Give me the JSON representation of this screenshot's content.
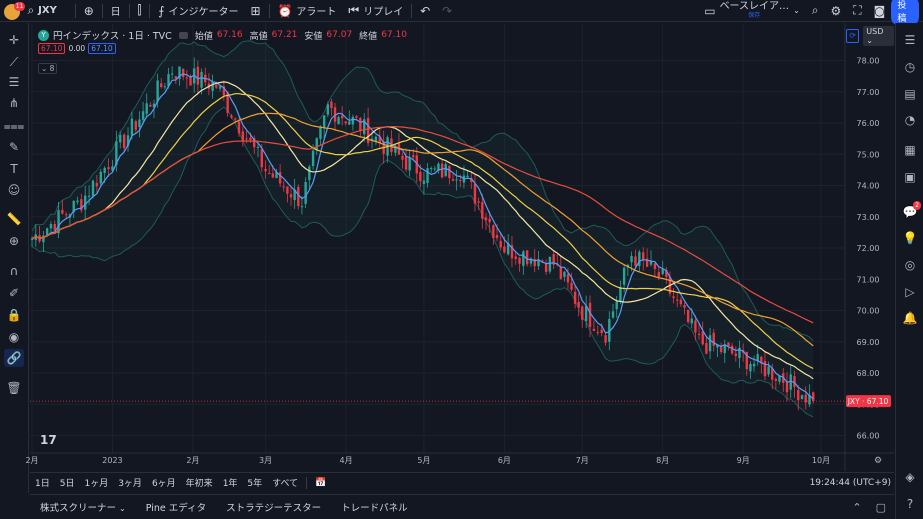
{
  "topbar": {
    "avatar_badge": "11",
    "symbol": "JXY",
    "interval": "日",
    "indicators_label": "インジケーター",
    "alert_label": "アラート",
    "replay_label": "リプレイ",
    "layout_label": "ベースレイア…",
    "layout_sub": "保存",
    "post_label": "投稿"
  },
  "legend": {
    "badge_letter": "Y",
    "title": "円インデックス · 1日 · TVC",
    "open_label": "始値",
    "open": "67.16",
    "high_label": "高値",
    "high": "67.21",
    "low_label": "安値",
    "low": "67.07",
    "close_label": "終値",
    "close": "67.10",
    "sell_price": "67.10",
    "change": "0.00",
    "buy_price": "67.10",
    "indicator_count": "8"
  },
  "currency": "USD",
  "price_tag": "JXY · 67.10",
  "chart_data": {
    "type": "candlestick",
    "y_axis_ticks": [
      "78.00",
      "77.00",
      "76.00",
      "75.00",
      "74.00",
      "73.00",
      "72.00",
      "71.00",
      "70.00",
      "69.00",
      "68.00",
      "67.00",
      "66.00"
    ],
    "x_axis_ticks": [
      "2月",
      "2023",
      "2月",
      "3月",
      "4月",
      "5月",
      "6月",
      "7月",
      "8月",
      "9月",
      "10月"
    ],
    "ylim": [
      65.6,
      78.4
    ],
    "last_price": 67.1,
    "approx_close_path": [
      {
        "date": "2022-12-01",
        "close": 72.3
      },
      {
        "date": "2022-12-20",
        "close": 73.5
      },
      {
        "date": "2023-01-10",
        "close": 76.0
      },
      {
        "date": "2023-01-24",
        "close": 77.7
      },
      {
        "date": "2023-02-10",
        "close": 77.2
      },
      {
        "date": "2023-03-01",
        "close": 74.5
      },
      {
        "date": "2023-03-15",
        "close": 73.5
      },
      {
        "date": "2023-03-25",
        "close": 76.5
      },
      {
        "date": "2023-04-05",
        "close": 76.0
      },
      {
        "date": "2023-04-20",
        "close": 75.0
      },
      {
        "date": "2023-05-01",
        "close": 74.4
      },
      {
        "date": "2023-05-15",
        "close": 74.5
      },
      {
        "date": "2023-06-01",
        "close": 72.0
      },
      {
        "date": "2023-06-20",
        "close": 71.5
      },
      {
        "date": "2023-07-01",
        "close": 70.0
      },
      {
        "date": "2023-07-10",
        "close": 69.3
      },
      {
        "date": "2023-07-20",
        "close": 71.8
      },
      {
        "date": "2023-08-01",
        "close": 71.0
      },
      {
        "date": "2023-08-15",
        "close": 69.0
      },
      {
        "date": "2023-09-01",
        "close": 68.5
      },
      {
        "date": "2023-09-15",
        "close": 67.9
      },
      {
        "date": "2023-09-28",
        "close": 67.1
      }
    ],
    "colors": {
      "up": "#26a69a",
      "down": "#f23645",
      "ma_blue": "#5b9cf6",
      "ma_yellow1": "#f0d04a",
      "ma_yellow2": "#f5e6a0",
      "ma_orange": "#f0a030",
      "ma_red": "#e84c3d",
      "bands": "#1e5b57"
    }
  },
  "rangebar": {
    "ranges": [
      "1日",
      "5日",
      "1ヶ月",
      "3ヶ月",
      "6ヶ月",
      "年初来",
      "1年",
      "5年",
      "すべて"
    ],
    "time": "19:24:44 (UTC+9)"
  },
  "bottompanel": {
    "tabs": [
      "株式スクリーナー",
      "Pine エディタ",
      "ストラテジーテスター",
      "トレードパネル"
    ]
  },
  "right_badge": "2"
}
